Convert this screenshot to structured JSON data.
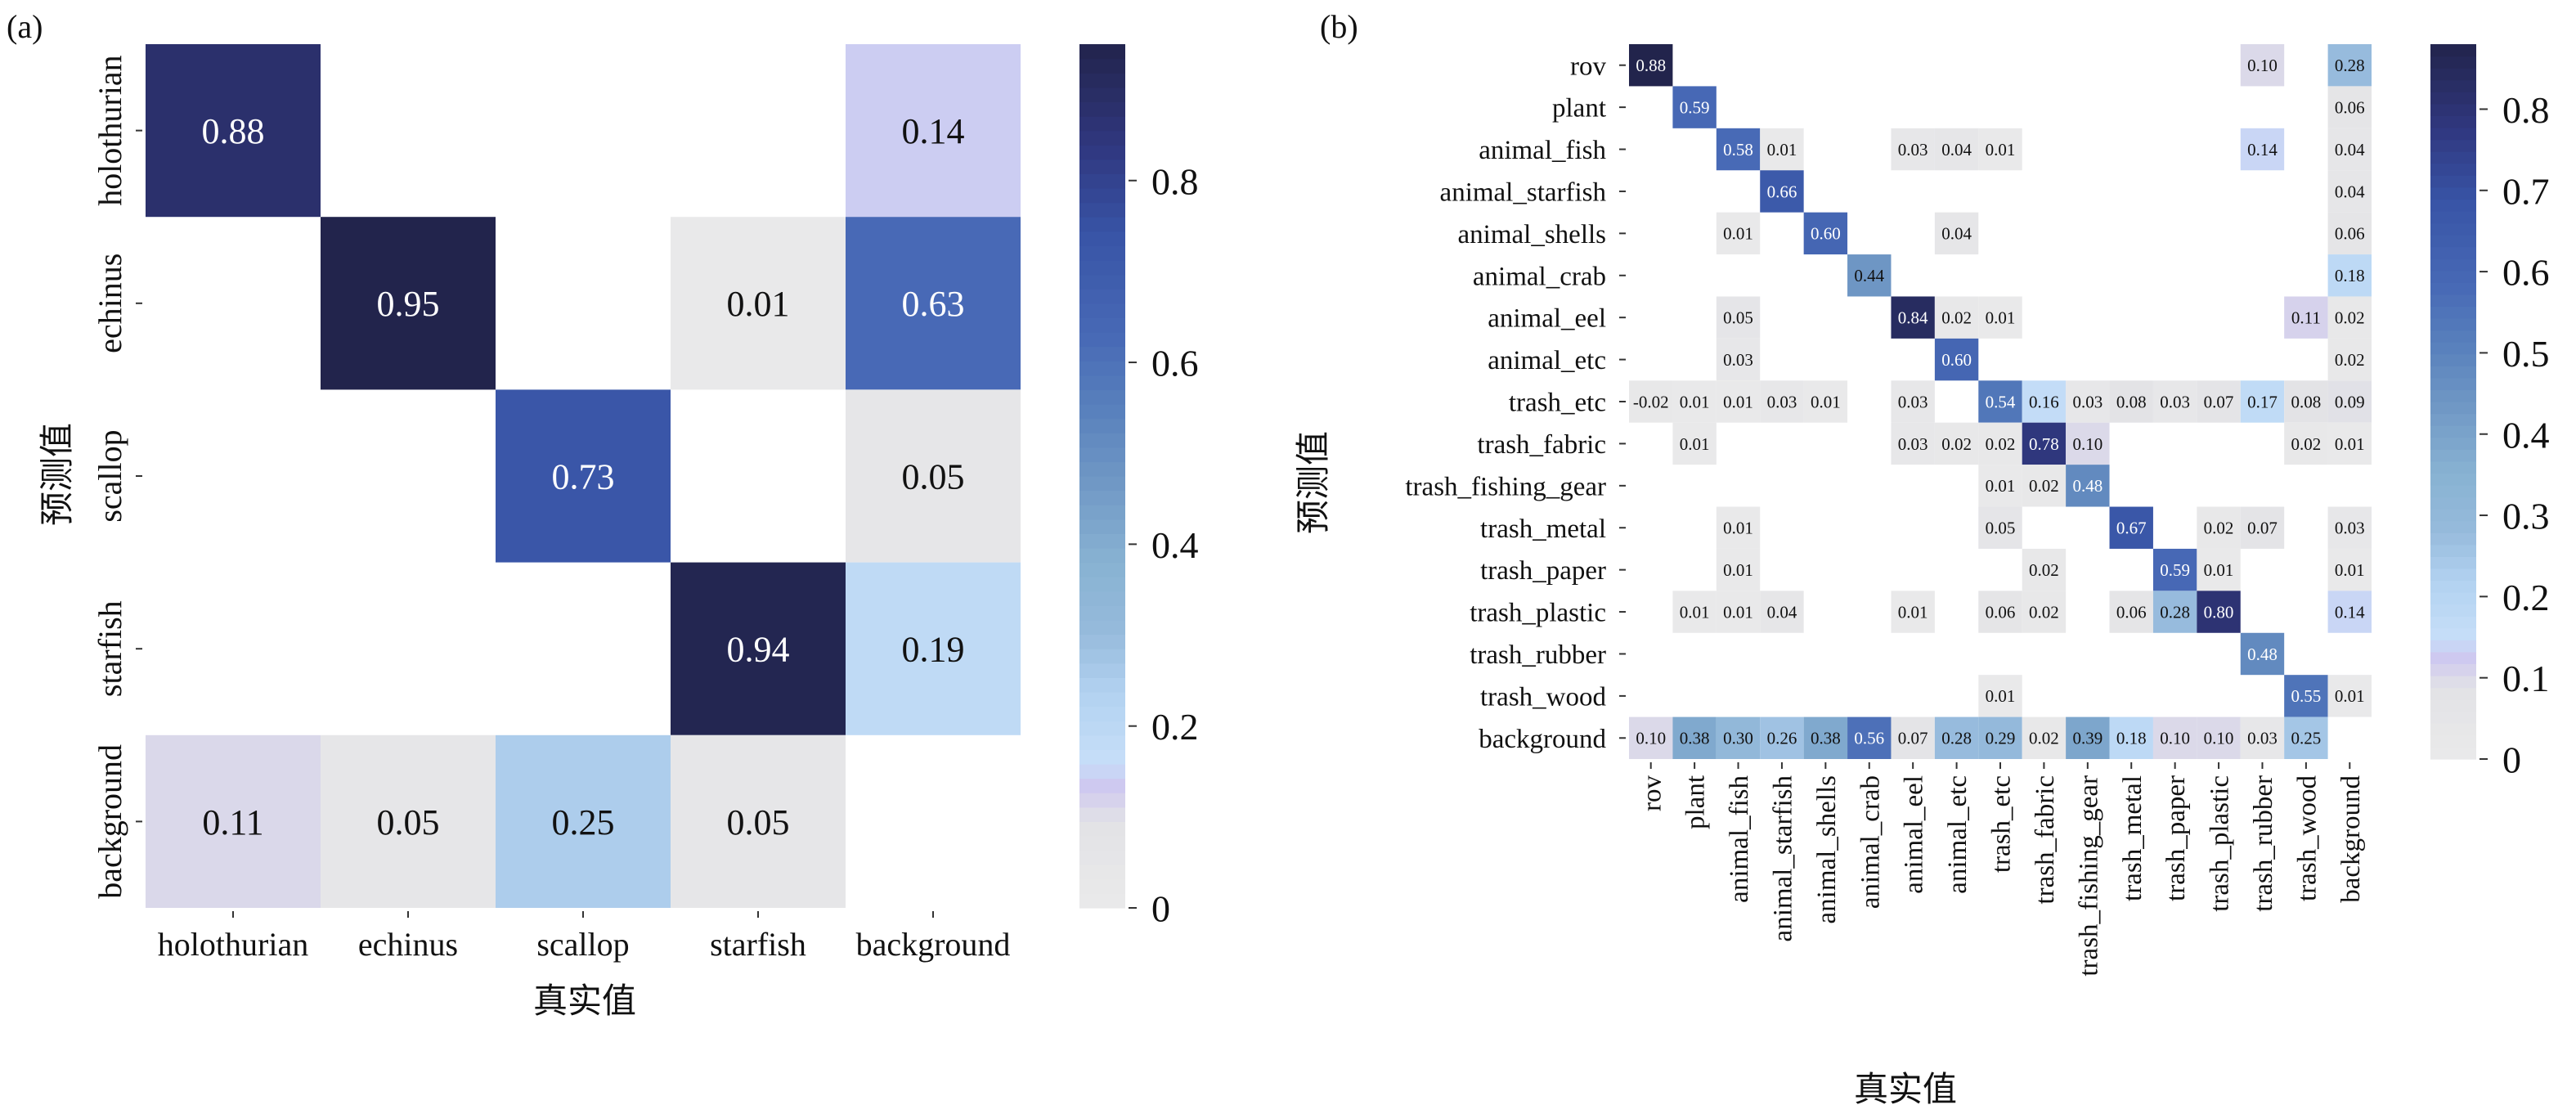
{
  "chart_data": [
    {
      "type": "heatmap",
      "panel_label": "(a)",
      "xlabel": "真实值",
      "ylabel": "预测值",
      "rows": [
        "holothurian",
        "echinus",
        "scallop",
        "starfish",
        "background"
      ],
      "cols": [
        "holothurian",
        "echinus",
        "scallop",
        "starfish",
        "background"
      ],
      "values": [
        [
          0.88,
          null,
          null,
          null,
          0.14
        ],
        [
          null,
          0.95,
          null,
          0.01,
          0.63
        ],
        [
          null,
          null,
          0.73,
          null,
          0.05
        ],
        [
          null,
          null,
          null,
          0.94,
          0.19
        ],
        [
          0.11,
          0.05,
          0.25,
          0.05,
          null
        ]
      ],
      "colorbar": {
        "min": 0,
        "max": 0.95,
        "ticks": [
          "0",
          "0.2",
          "0.4",
          "0.6",
          "0.8"
        ]
      }
    },
    {
      "type": "heatmap",
      "panel_label": "(b)",
      "xlabel": "真实值",
      "ylabel": "预测值",
      "rows": [
        "rov",
        "plant",
        "animal_fish",
        "animal_starfish",
        "animal_shells",
        "animal_crab",
        "animal_eel",
        "animal_etc",
        "trash_etc",
        "trash_fabric",
        "trash_fishing_gear",
        "trash_metal",
        "trash_paper",
        "trash_plastic",
        "trash_rubber",
        "trash_wood",
        "background"
      ],
      "cols": [
        "rov",
        "plant",
        "animal_fish",
        "animal_starfish",
        "animal_shells",
        "animal_crab",
        "animal_eel",
        "animal_etc",
        "trash_etc",
        "trash_fabric",
        "trash_fishing_gear",
        "trash_metal",
        "trash_paper",
        "trash_plastic",
        "trash_rubber",
        "trash_wood",
        "background"
      ],
      "values": [
        [
          0.88,
          null,
          null,
          null,
          null,
          null,
          null,
          null,
          null,
          null,
          null,
          null,
          null,
          null,
          0.1,
          null,
          0.28
        ],
        [
          null,
          0.59,
          null,
          null,
          null,
          null,
          null,
          null,
          null,
          null,
          null,
          null,
          null,
          null,
          null,
          null,
          0.06
        ],
        [
          null,
          null,
          0.58,
          0.01,
          null,
          null,
          0.03,
          0.04,
          0.01,
          null,
          null,
          null,
          null,
          null,
          0.14,
          null,
          0.04
        ],
        [
          null,
          null,
          null,
          0.66,
          null,
          null,
          null,
          null,
          null,
          null,
          null,
          null,
          null,
          null,
          null,
          null,
          0.04
        ],
        [
          null,
          null,
          0.01,
          null,
          0.6,
          null,
          null,
          0.04,
          null,
          null,
          null,
          null,
          null,
          null,
          null,
          null,
          0.06
        ],
        [
          null,
          null,
          null,
          null,
          null,
          0.44,
          null,
          null,
          null,
          null,
          null,
          null,
          null,
          null,
          null,
          null,
          0.18
        ],
        [
          null,
          null,
          0.05,
          null,
          null,
          null,
          0.84,
          0.02,
          0.01,
          null,
          null,
          null,
          null,
          null,
          null,
          0.11,
          0.02
        ],
        [
          null,
          null,
          0.03,
          null,
          null,
          null,
          null,
          0.6,
          null,
          null,
          null,
          null,
          null,
          null,
          null,
          null,
          0.02
        ],
        [
          -0.02,
          0.01,
          0.01,
          0.03,
          0.01,
          null,
          0.03,
          null,
          0.54,
          0.16,
          0.03,
          0.08,
          0.03,
          0.07,
          0.17,
          0.08,
          0.09
        ],
        [
          null,
          0.01,
          null,
          null,
          null,
          null,
          0.03,
          0.02,
          0.02,
          0.78,
          0.1,
          null,
          null,
          null,
          null,
          0.02,
          0.01
        ],
        [
          null,
          null,
          null,
          null,
          null,
          null,
          null,
          null,
          0.01,
          0.02,
          0.48,
          null,
          null,
          null,
          null,
          null,
          null
        ],
        [
          null,
          null,
          0.01,
          null,
          null,
          null,
          null,
          null,
          0.05,
          null,
          null,
          0.67,
          null,
          0.02,
          0.07,
          null,
          0.03
        ],
        [
          null,
          null,
          0.01,
          null,
          null,
          null,
          null,
          null,
          null,
          0.02,
          null,
          null,
          0.59,
          0.01,
          null,
          null,
          0.01
        ],
        [
          null,
          0.01,
          0.01,
          0.04,
          null,
          null,
          0.01,
          null,
          0.06,
          0.02,
          null,
          0.06,
          0.28,
          0.8,
          null,
          null,
          0.14
        ],
        [
          null,
          null,
          null,
          null,
          null,
          null,
          null,
          null,
          null,
          null,
          null,
          null,
          null,
          null,
          0.48,
          null,
          null
        ],
        [
          null,
          null,
          null,
          null,
          null,
          null,
          null,
          null,
          0.01,
          null,
          null,
          null,
          null,
          null,
          null,
          0.55,
          0.01
        ],
        [
          0.1,
          0.38,
          0.3,
          0.26,
          0.38,
          0.56,
          0.07,
          0.28,
          0.29,
          0.02,
          0.39,
          0.18,
          0.1,
          0.1,
          0.03,
          0.25,
          null
        ]
      ],
      "colorbar": {
        "min": 0,
        "max": 0.88,
        "ticks": [
          "0",
          "0.1",
          "0.2",
          "0.3",
          "0.4",
          "0.5",
          "0.6",
          "0.7",
          "0.8"
        ]
      }
    }
  ]
}
